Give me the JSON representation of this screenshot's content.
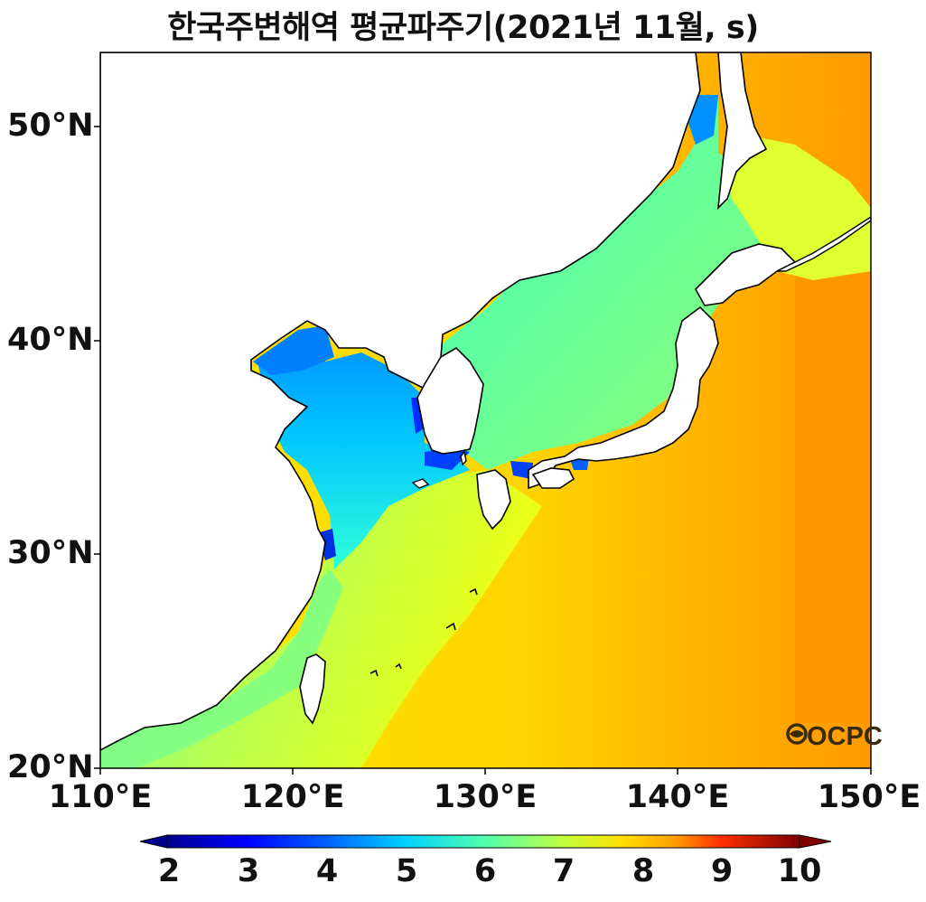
{
  "title": "한국주변해역 평균파주기(2021년 11월, s)",
  "watermark": "OCPC",
  "map": {
    "lon_range": [
      110,
      150
    ],
    "lat_range": [
      20,
      53.5
    ],
    "y_ticks": [
      "50°N",
      "40°N",
      "30°N",
      "20°N"
    ],
    "x_ticks": [
      "110°E",
      "120°E",
      "130°E",
      "140°E",
      "150°E"
    ]
  },
  "colorbar": {
    "ticks": [
      "2",
      "3",
      "4",
      "5",
      "6",
      "7",
      "8",
      "9",
      "10"
    ],
    "range": [
      2,
      10
    ],
    "extend": "both",
    "colors": [
      "#00008f",
      "#0000ff",
      "#0060ff",
      "#00c8ff",
      "#30ffd0",
      "#80ff80",
      "#d0ff30",
      "#ffe000",
      "#ffa000",
      "#ff4000",
      "#e00000",
      "#800000"
    ]
  },
  "field_colors": {
    "pacific_east": "#ff9a00",
    "pacific_mid": "#ffc000",
    "pacific_west": "#ffe800",
    "east_china_sea": "#c8ff40",
    "south_china_coast": "#9cff70",
    "east_sea": "#7dff88",
    "yellow_sea": "#16f0f0",
    "bohai": "#0096ff",
    "coastal_low": "#0050ff",
    "land": "#ffffff",
    "coastline": "#000000"
  }
}
